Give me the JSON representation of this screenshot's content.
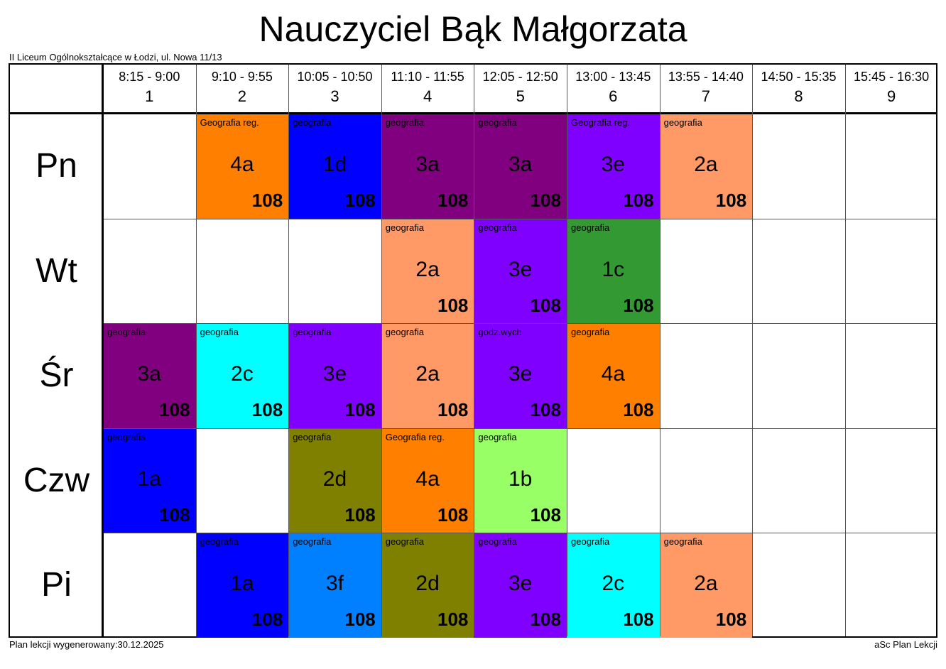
{
  "title": "Nauczyciel Bąk Małgorzata",
  "school": "II Liceum Ogólnokształcące w Łodzi, ul. Nowa 11/13",
  "footer_left": "Plan lekcji wygenerowany:30.12.2025",
  "footer_right": "aSc Plan Lekcji",
  "periods": [
    {
      "time": "8:15 - 9:00",
      "num": "1"
    },
    {
      "time": "9:10 - 9:55",
      "num": "2"
    },
    {
      "time": "10:05 - 10:50",
      "num": "3"
    },
    {
      "time": "11:10 - 11:55",
      "num": "4"
    },
    {
      "time": "12:05 - 12:50",
      "num": "5"
    },
    {
      "time": "13:00 - 13:45",
      "num": "6"
    },
    {
      "time": "13:55 - 14:40",
      "num": "7"
    },
    {
      "time": "14:50 - 15:35",
      "num": "8"
    },
    {
      "time": "15:45 - 16:30",
      "num": "9"
    }
  ],
  "days": [
    "Pn",
    "Wt",
    "Śr",
    "Czw",
    "Pi"
  ],
  "lessons": [
    {
      "day": 0,
      "period": 2,
      "subject": "Geografia reg.",
      "class": "4a",
      "room": "108",
      "color": "#ff7f00"
    },
    {
      "day": 0,
      "period": 3,
      "subject": "geografia",
      "class": "1d",
      "room": "108",
      "color": "#0000ff"
    },
    {
      "day": 0,
      "period": 4,
      "subject": "geografia",
      "class": "3a",
      "room": "108",
      "color": "#800080"
    },
    {
      "day": 0,
      "period": 5,
      "subject": "geografia",
      "class": "3a",
      "room": "108",
      "color": "#800080"
    },
    {
      "day": 0,
      "period": 6,
      "subject": "Geografia reg.",
      "class": "3e",
      "room": "108",
      "color": "#8000ff"
    },
    {
      "day": 0,
      "period": 7,
      "subject": "geografia",
      "class": "2a",
      "room": "108",
      "color": "#ff9966"
    },
    {
      "day": 1,
      "period": 4,
      "subject": "geografia",
      "class": "2a",
      "room": "108",
      "color": "#ff9966"
    },
    {
      "day": 1,
      "period": 5,
      "subject": "geografia",
      "class": "3e",
      "room": "108",
      "color": "#8000ff"
    },
    {
      "day": 1,
      "period": 6,
      "subject": "geografia",
      "class": "1c",
      "room": "108",
      "color": "#339933"
    },
    {
      "day": 2,
      "period": 1,
      "subject": "geografia",
      "class": "3a",
      "room": "108",
      "color": "#800080"
    },
    {
      "day": 2,
      "period": 2,
      "subject": "geografia",
      "class": "2c",
      "room": "108",
      "color": "#00ffff"
    },
    {
      "day": 2,
      "period": 3,
      "subject": "geografia",
      "class": "3e",
      "room": "108",
      "color": "#8000ff"
    },
    {
      "day": 2,
      "period": 4,
      "subject": "geografia",
      "class": "2a",
      "room": "108",
      "color": "#ff9966"
    },
    {
      "day": 2,
      "period": 5,
      "subject": "godz.wych",
      "class": "3e",
      "room": "108",
      "color": "#8000ff"
    },
    {
      "day": 2,
      "period": 6,
      "subject": "geografia",
      "class": "4a",
      "room": "108",
      "color": "#ff7f00"
    },
    {
      "day": 3,
      "period": 1,
      "subject": "geografia",
      "class": "1a",
      "room": "108",
      "color": "#0000ff"
    },
    {
      "day": 3,
      "period": 3,
      "subject": "geografia",
      "class": "2d",
      "room": "108",
      "color": "#808000"
    },
    {
      "day": 3,
      "period": 4,
      "subject": "Geografia reg.",
      "class": "4a",
      "room": "108",
      "color": "#ff7f00"
    },
    {
      "day": 3,
      "period": 5,
      "subject": "geografia",
      "class": "1b",
      "room": "108",
      "color": "#99ff66"
    },
    {
      "day": 4,
      "period": 2,
      "subject": "geografia",
      "class": "1a",
      "room": "108",
      "color": "#0000ff"
    },
    {
      "day": 4,
      "period": 3,
      "subject": "geografia",
      "class": "3f",
      "room": "108",
      "color": "#0080ff"
    },
    {
      "day": 4,
      "period": 4,
      "subject": "geografia",
      "class": "2d",
      "room": "108",
      "color": "#808000"
    },
    {
      "day": 4,
      "period": 5,
      "subject": "geografia",
      "class": "3e",
      "room": "108",
      "color": "#8000ff"
    },
    {
      "day": 4,
      "period": 6,
      "subject": "geografia",
      "class": "2c",
      "room": "108",
      "color": "#00ffff"
    },
    {
      "day": 4,
      "period": 7,
      "subject": "geografia",
      "class": "2a",
      "room": "108",
      "color": "#ff9966"
    }
  ]
}
